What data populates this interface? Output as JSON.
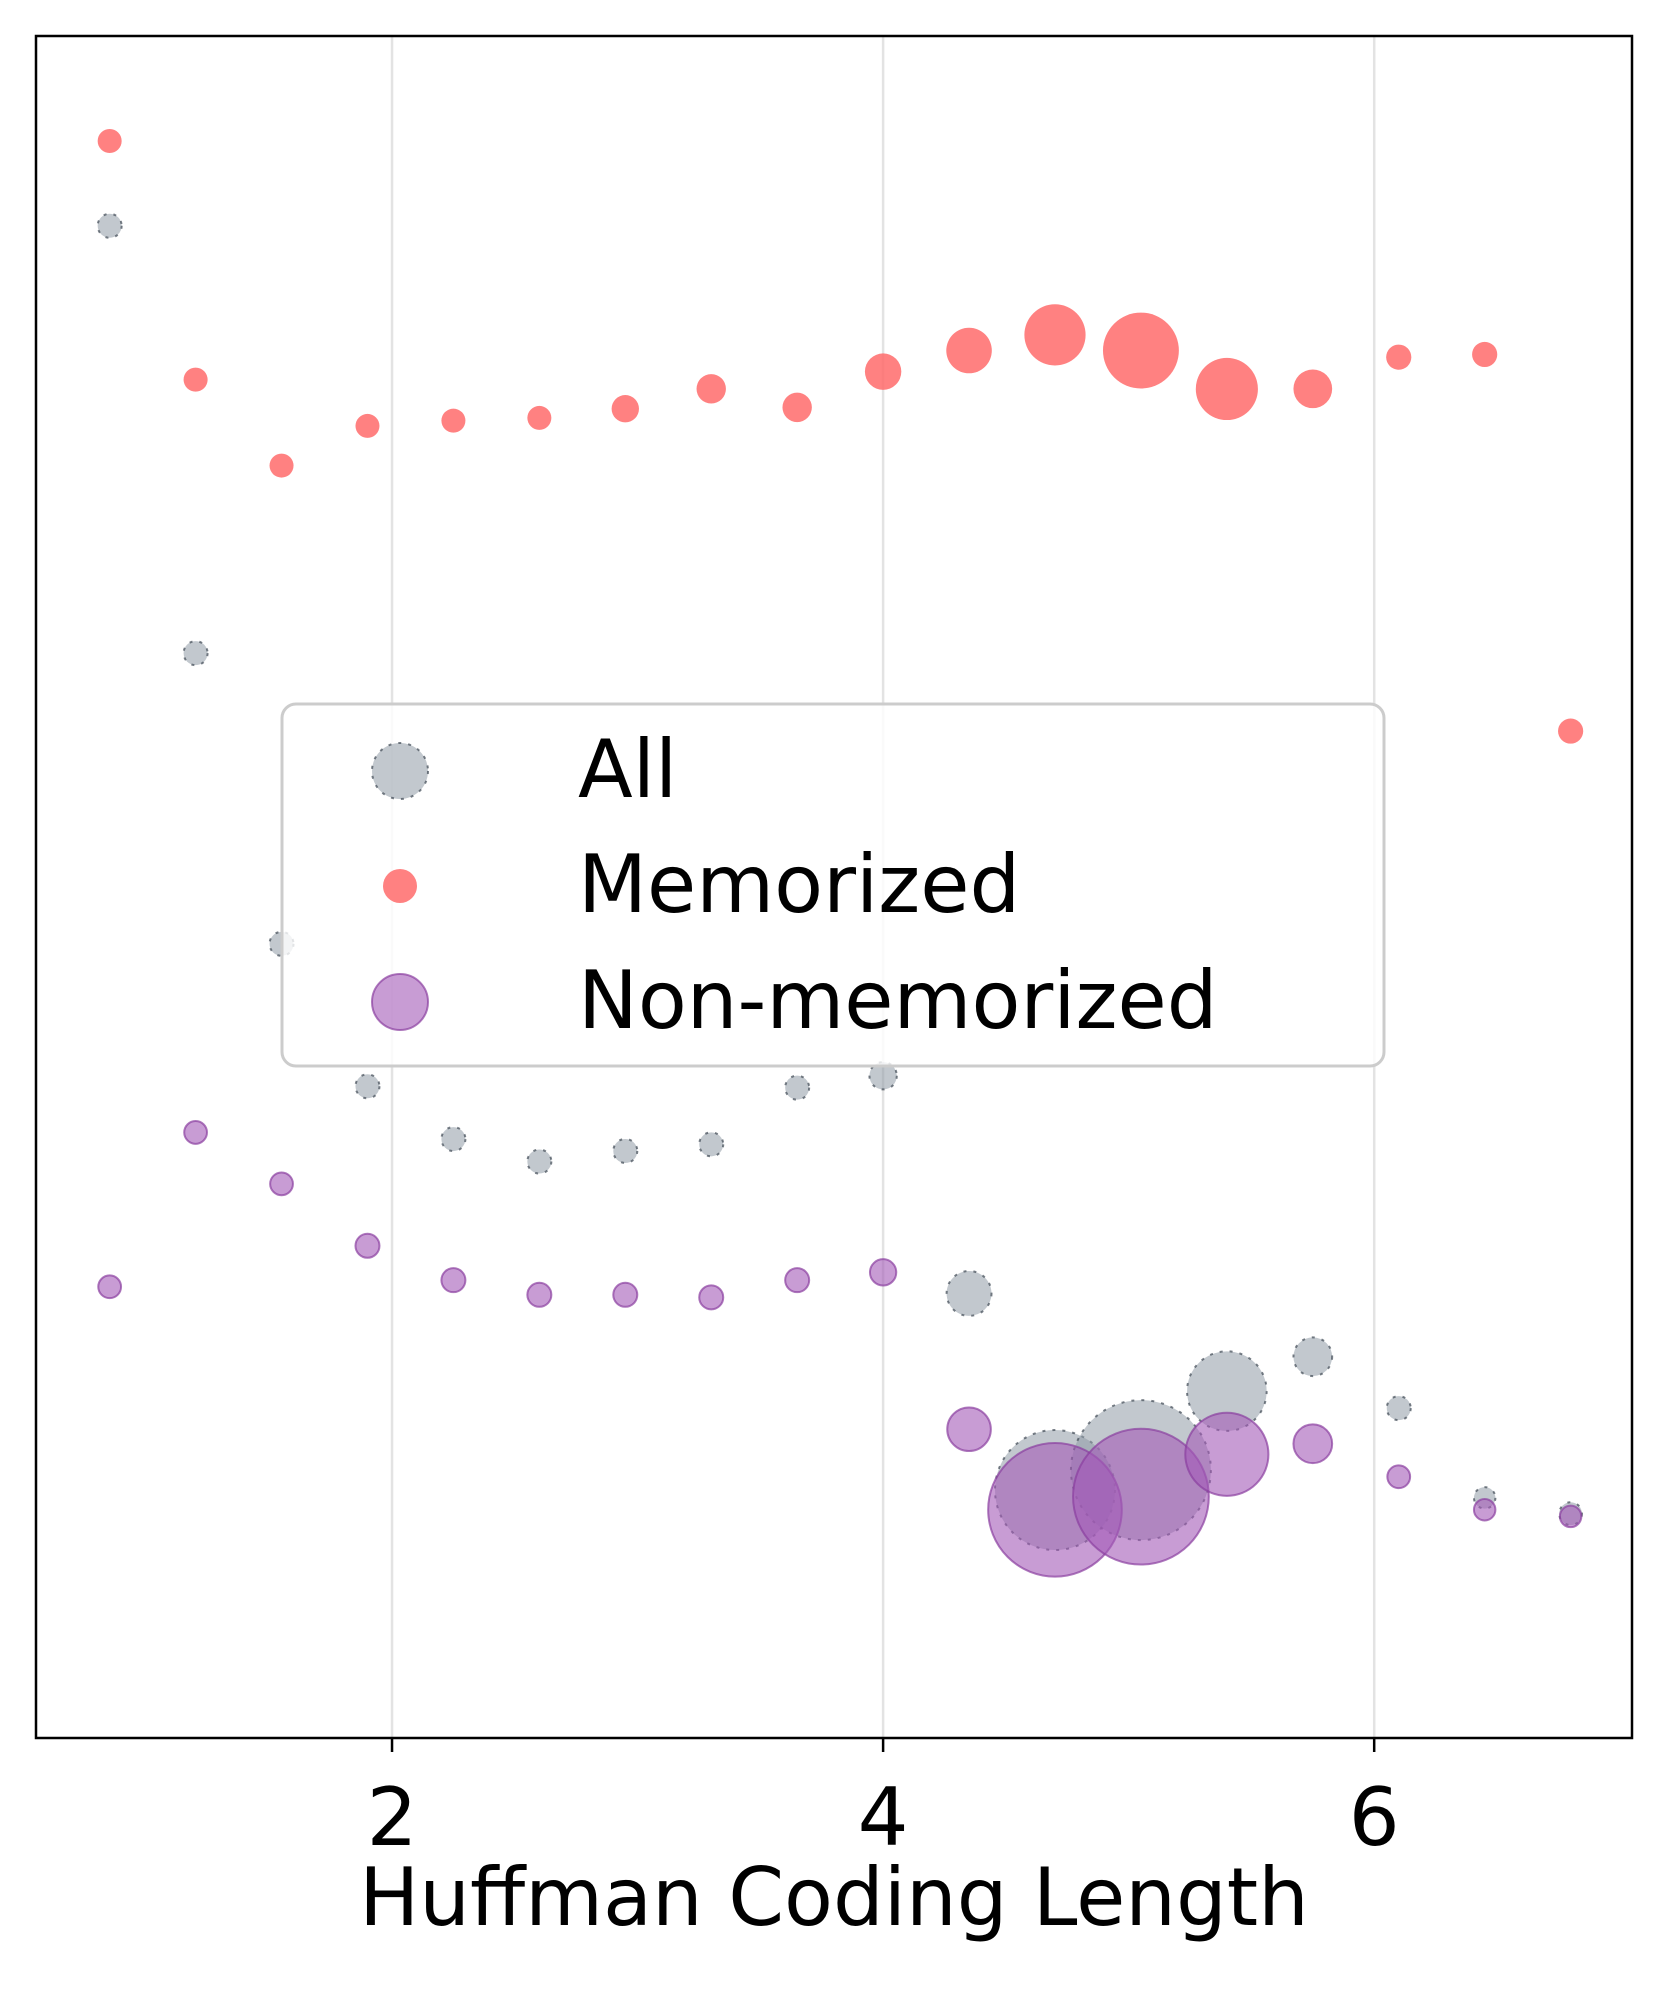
{
  "chart_data": {
    "type": "scatter",
    "title": "",
    "xlabel": "Huffman Coding Length",
    "ylabel": "",
    "xlim": [
      0.55,
      7.05
    ],
    "ylim": [
      0.0,
      1.0
    ],
    "xticks": [
      2,
      4,
      6
    ],
    "xtick_labels": [
      "2",
      "4",
      "6"
    ],
    "yticks_visible": false,
    "grid": "vertical",
    "legend_location": "center",
    "series": [
      {
        "name": "All",
        "color": "#8f9aa6",
        "edge_color": "#3d4753",
        "points": [
          {
            "x": 0.85,
            "y": 0.8885,
            "size": 1
          },
          {
            "x": 1.2,
            "y": 0.6374,
            "size": 1
          },
          {
            "x": 1.55,
            "y": 0.4666,
            "size": 1
          },
          {
            "x": 1.9,
            "y": 0.3829,
            "size": 1
          },
          {
            "x": 2.25,
            "y": 0.3519,
            "size": 1
          },
          {
            "x": 2.6,
            "y": 0.3387,
            "size": 1
          },
          {
            "x": 2.95,
            "y": 0.3449,
            "size": 1
          },
          {
            "x": 3.3,
            "y": 0.3488,
            "size": 1
          },
          {
            "x": 3.65,
            "y": 0.3821,
            "size": 1
          },
          {
            "x": 4.0,
            "y": 0.3891,
            "size": 1.3
          },
          {
            "x": 4.35,
            "y": 0.2612,
            "size": 3.5
          },
          {
            "x": 4.7,
            "y": 0.1457,
            "size": 25
          },
          {
            "x": 5.05,
            "y": 0.1574,
            "size": 34
          },
          {
            "x": 5.4,
            "y": 0.2038,
            "size": 11
          },
          {
            "x": 5.75,
            "y": 0.224,
            "size": 2.6
          },
          {
            "x": 6.1,
            "y": 0.1938,
            "size": 1
          },
          {
            "x": 6.45,
            "y": 0.1411,
            "size": 0.8
          },
          {
            "x": 6.8,
            "y": 0.1318,
            "size": 0.9
          }
        ]
      },
      {
        "name": "Memorized",
        "color": "#ff6b6b",
        "points": [
          {
            "x": 0.85,
            "y": 0.9383,
            "size": 1
          },
          {
            "x": 1.2,
            "y": 0.7981,
            "size": 1
          },
          {
            "x": 1.55,
            "y": 0.7476,
            "size": 1
          },
          {
            "x": 1.9,
            "y": 0.7709,
            "size": 1
          },
          {
            "x": 2.25,
            "y": 0.774,
            "size": 1
          },
          {
            "x": 2.6,
            "y": 0.7756,
            "size": 1
          },
          {
            "x": 2.95,
            "y": 0.781,
            "size": 1.3
          },
          {
            "x": 3.3,
            "y": 0.7927,
            "size": 1.5
          },
          {
            "x": 3.65,
            "y": 0.7818,
            "size": 1.5
          },
          {
            "x": 4.0,
            "y": 0.8028,
            "size": 2.3
          },
          {
            "x": 4.35,
            "y": 0.8152,
            "size": 3.6
          },
          {
            "x": 4.7,
            "y": 0.8244,
            "size": 6.5
          },
          {
            "x": 5.05,
            "y": 0.8152,
            "size": 10
          },
          {
            "x": 5.4,
            "y": 0.7926,
            "size": 6.7
          },
          {
            "x": 5.75,
            "y": 0.7927,
            "size": 2.6
          },
          {
            "x": 6.1,
            "y": 0.8113,
            "size": 1.1
          },
          {
            "x": 6.45,
            "y": 0.8129,
            "size": 1.1
          },
          {
            "x": 6.8,
            "y": 0.5916,
            "size": 1.1
          }
        ]
      },
      {
        "name": "Non-memorized",
        "color": "#a45ab8",
        "edge_color": "#8a3fa0",
        "points": [
          {
            "x": 0.85,
            "y": 0.2651,
            "size": 0.9
          },
          {
            "x": 1.2,
            "y": 0.3558,
            "size": 0.9
          },
          {
            "x": 1.55,
            "y": 0.3256,
            "size": 0.9
          },
          {
            "x": 1.9,
            "y": 0.2892,
            "size": 1
          },
          {
            "x": 2.25,
            "y": 0.269,
            "size": 1
          },
          {
            "x": 2.6,
            "y": 0.2604,
            "size": 1
          },
          {
            "x": 2.95,
            "y": 0.2604,
            "size": 1
          },
          {
            "x": 3.3,
            "y": 0.2589,
            "size": 1
          },
          {
            "x": 3.65,
            "y": 0.269,
            "size": 1
          },
          {
            "x": 4.0,
            "y": 0.2736,
            "size": 1.2
          },
          {
            "x": 4.35,
            "y": 0.1814,
            "size": 3.3
          },
          {
            "x": 4.7,
            "y": 0.1341,
            "size": 31
          },
          {
            "x": 5.05,
            "y": 0.1418,
            "size": 32
          },
          {
            "x": 5.4,
            "y": 0.1667,
            "size": 12
          },
          {
            "x": 5.75,
            "y": 0.1729,
            "size": 2.6
          },
          {
            "x": 6.1,
            "y": 0.1535,
            "size": 0.9
          },
          {
            "x": 6.45,
            "y": 0.1341,
            "size": 0.8
          },
          {
            "x": 6.8,
            "y": 0.1302,
            "size": 0.8
          }
        ]
      }
    ],
    "legend": [
      {
        "label": "All",
        "series": "All"
      },
      {
        "label": "Memorized",
        "series": "Memorized"
      },
      {
        "label": "Non-memorized",
        "series": "Non-memorized"
      }
    ]
  }
}
